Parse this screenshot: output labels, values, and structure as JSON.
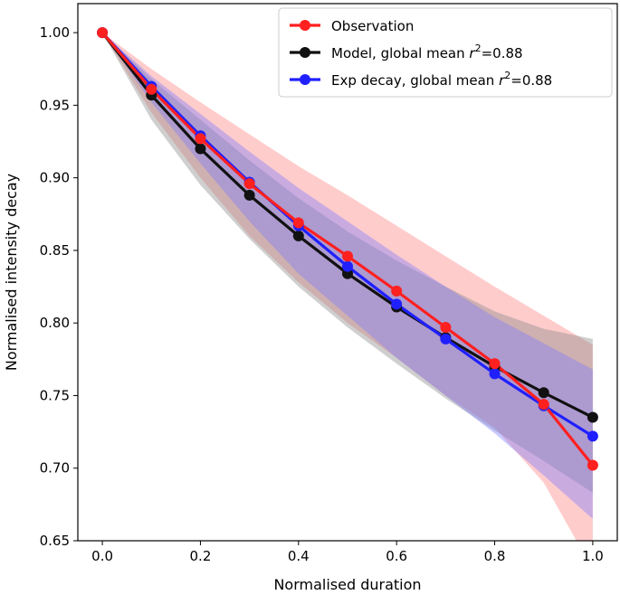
{
  "chart_data": {
    "type": "line",
    "title": "",
    "xlabel": "Normalised duration",
    "ylabel": "Normalised intensity decay",
    "xlim": [
      -0.05,
      1.05
    ],
    "ylim": [
      0.65,
      1.02
    ],
    "xticks": [
      "0.0",
      "0.2",
      "0.4",
      "0.6",
      "0.8",
      "1.0"
    ],
    "yticks": [
      "0.65",
      "0.70",
      "0.75",
      "0.80",
      "0.85",
      "0.90",
      "0.95",
      "1.00"
    ],
    "legend_position": "top-right",
    "x": [
      0.0,
      0.1,
      0.2,
      0.3,
      0.4,
      0.5,
      0.6,
      0.7,
      0.8,
      0.9,
      1.0
    ],
    "series": [
      {
        "name": "Observation",
        "color": "#ff2020",
        "band_color": "#ff8080",
        "values": [
          1.0,
          0.961,
          0.927,
          0.896,
          0.869,
          0.846,
          0.822,
          0.797,
          0.772,
          0.744,
          0.702
        ],
        "band_upper": [
          1.0,
          0.975,
          0.952,
          0.93,
          0.908,
          0.888,
          0.867,
          0.846,
          0.825,
          0.805,
          0.785
        ],
        "band_lower": [
          1.0,
          0.945,
          0.9,
          0.86,
          0.828,
          0.8,
          0.776,
          0.75,
          0.728,
          0.69,
          0.63
        ]
      },
      {
        "name": "Model, global mean r²=0.88",
        "name_prefix": "Model, global mean ",
        "name_var": "r",
        "name_sup": "2",
        "name_suffix": "=0.88",
        "color": "#111111",
        "band_color": "#888888",
        "values": [
          1.0,
          0.957,
          0.92,
          0.888,
          0.86,
          0.834,
          0.811,
          0.79,
          0.77,
          0.752,
          0.735
        ],
        "band_upper": [
          1.0,
          0.968,
          0.94,
          0.912,
          0.886,
          0.863,
          0.843,
          0.825,
          0.808,
          0.796,
          0.789
        ],
        "band_lower": [
          1.0,
          0.94,
          0.895,
          0.858,
          0.825,
          0.797,
          0.772,
          0.748,
          0.726,
          0.705,
          0.683
        ]
      },
      {
        "name": "Exp decay, global mean r²=0.88",
        "name_prefix": "Exp decay, global mean ",
        "name_var": "r",
        "name_sup": "2",
        "name_suffix": "=0.88",
        "color": "#2020ff",
        "band_color": "#7a7aff",
        "values": [
          1.0,
          0.963,
          0.929,
          0.897,
          0.867,
          0.839,
          0.813,
          0.789,
          0.765,
          0.743,
          0.722
        ],
        "band_upper": [
          1.0,
          0.97,
          0.944,
          0.918,
          0.893,
          0.87,
          0.847,
          0.825,
          0.804,
          0.786,
          0.768
        ],
        "band_lower": [
          1.0,
          0.952,
          0.91,
          0.87,
          0.834,
          0.805,
          0.776,
          0.75,
          0.724,
          0.695,
          0.665
        ]
      }
    ]
  }
}
